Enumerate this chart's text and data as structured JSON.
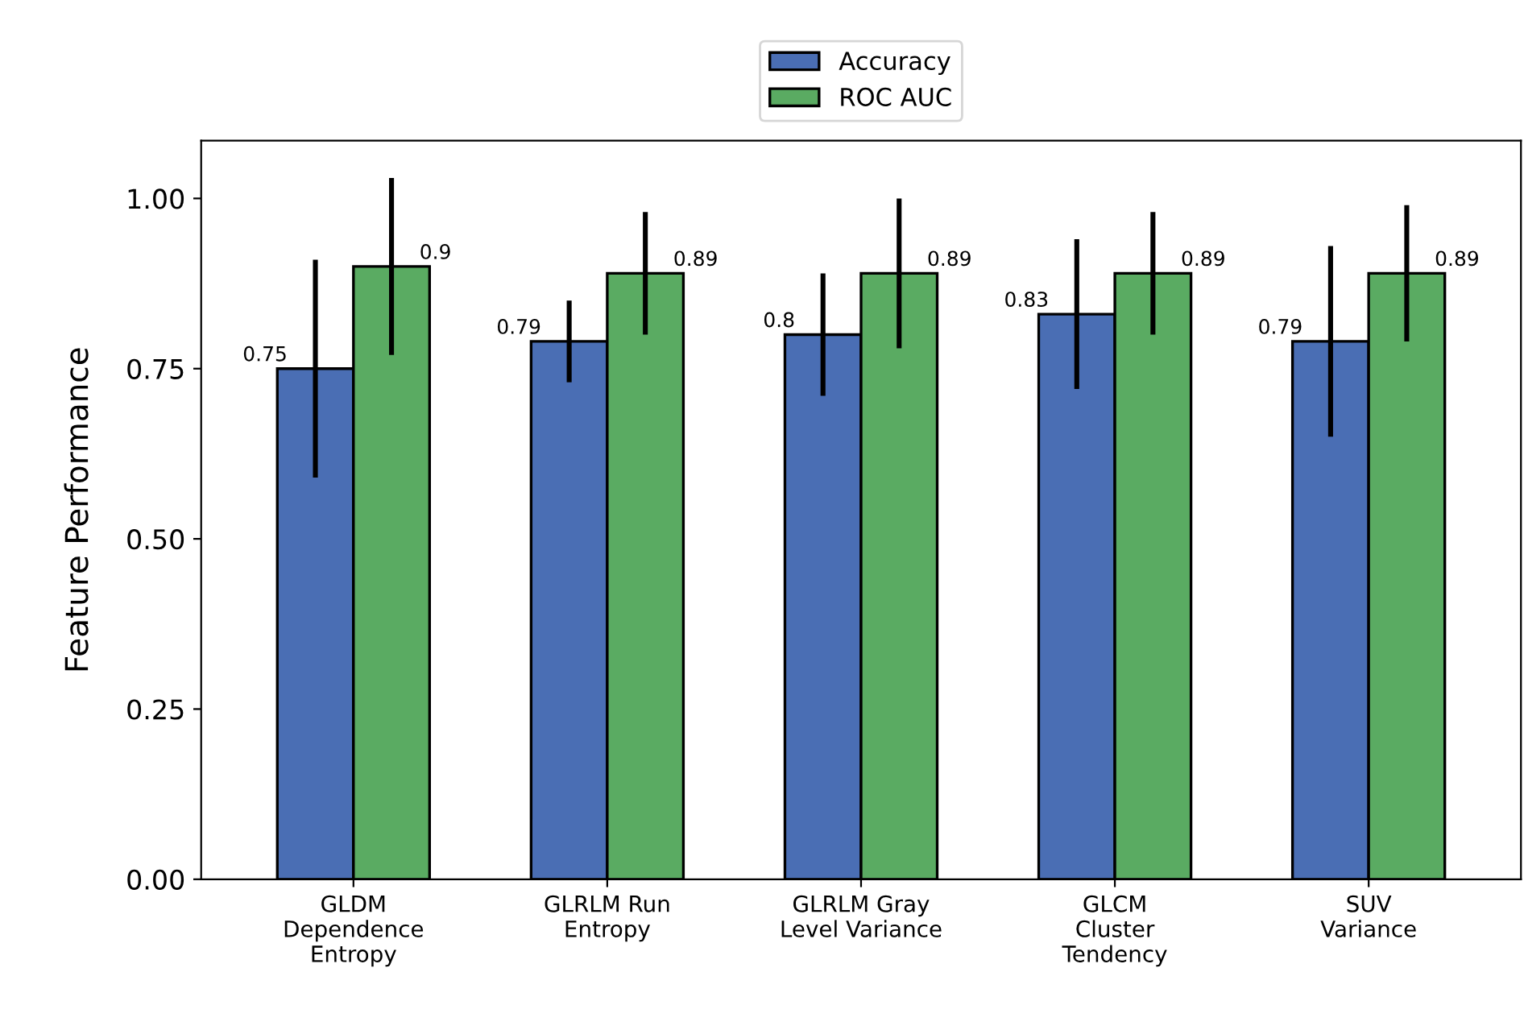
{
  "chart_data": {
    "type": "bar",
    "ylabel": "Feature Performance",
    "categories": [
      "GLDM\nDependence\nEntropy",
      "GLRLM Run\nEntropy",
      "GLRLM Gray\nLevel Variance",
      "GLCM\nCluster\nTendency",
      "SUV\nVariance"
    ],
    "series": [
      {
        "name": "Accuracy",
        "color": "#4a6eb4",
        "values": [
          0.75,
          0.79,
          0.8,
          0.83,
          0.79
        ],
        "errors": [
          0.16,
          0.06,
          0.09,
          0.11,
          0.14
        ]
      },
      {
        "name": "ROC AUC",
        "color": "#5aab62",
        "values": [
          0.9,
          0.89,
          0.89,
          0.89,
          0.89
        ],
        "errors": [
          0.13,
          0.09,
          0.11,
          0.09,
          0.1
        ]
      }
    ],
    "ylim": [
      0,
      1.085
    ],
    "yticks": [
      {
        "value": 0,
        "label": "0.00"
      },
      {
        "value": 0.25,
        "label": "0.25"
      },
      {
        "value": 0.5,
        "label": "0.50"
      },
      {
        "value": 0.75,
        "label": "0.75"
      },
      {
        "value": 1,
        "label": "1.00"
      }
    ],
    "data_labels": true,
    "legend": "top",
    "grid": false
  }
}
